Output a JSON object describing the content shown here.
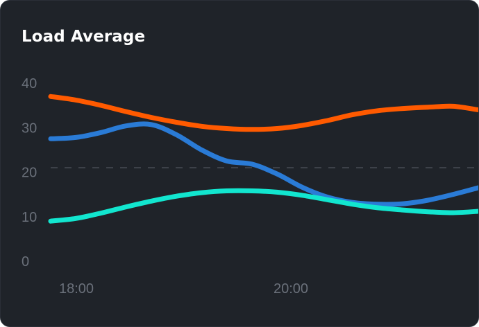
{
  "chart_data": {
    "type": "line",
    "title": "Load Average",
    "xlabel": "",
    "ylabel": "",
    "x_ticks": [
      "18:00",
      "20:00"
    ],
    "y_ticks": [
      "0",
      "10",
      "20",
      "30",
      "40"
    ],
    "ylim": [
      0,
      40
    ],
    "grid": false,
    "reference_line": 21,
    "x": [
      "17:45",
      "18:00",
      "18:15",
      "18:30",
      "18:45",
      "19:00",
      "19:15",
      "19:30",
      "19:45",
      "20:00",
      "20:15",
      "20:30",
      "20:45",
      "21:00",
      "21:15",
      "21:30",
      "21:45",
      "22:00"
    ],
    "series": [
      {
        "color": "#ff5a00",
        "values": [
          37,
          36.2,
          35,
          33.6,
          32.3,
          31.2,
          30.3,
          29.8,
          29.6,
          29.8,
          30.5,
          31.6,
          32.9,
          33.8,
          34.3,
          34.6,
          34.8,
          34
        ]
      },
      {
        "color": "#2a7bd6",
        "values": [
          27.5,
          27.8,
          28.9,
          30.4,
          30.7,
          28.4,
          25,
          22.5,
          21.8,
          19.6,
          16.6,
          14.4,
          13.2,
          12.8,
          12.9,
          13.7,
          15,
          16.5
        ]
      },
      {
        "color": "#12e6cf",
        "values": [
          9,
          9.6,
          10.8,
          12.2,
          13.5,
          14.6,
          15.4,
          15.8,
          15.8,
          15.5,
          14.8,
          13.8,
          12.8,
          12,
          11.5,
          11.1,
          10.9,
          11.2
        ]
      }
    ]
  }
}
